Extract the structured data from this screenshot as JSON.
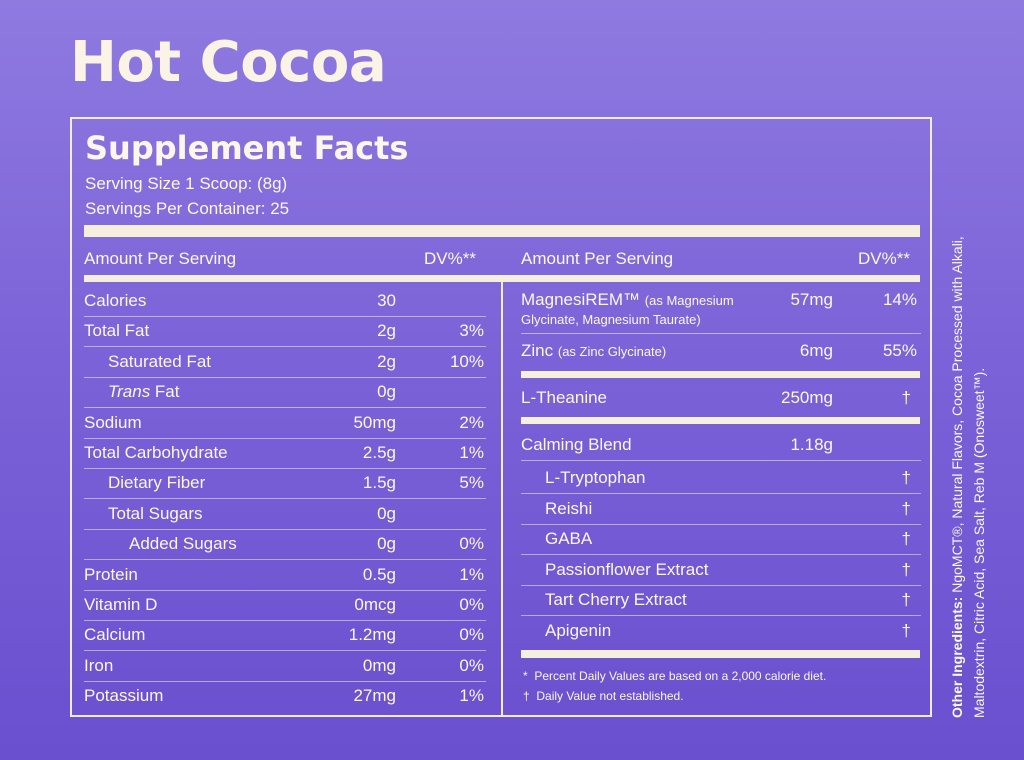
{
  "title": "Hot Cocoa",
  "facts": {
    "heading": "Supplement Facts",
    "serving_size": "Serving Size 1 Scoop: (8g)",
    "servings_per_container": "Servings Per Container: 25",
    "left_header": {
      "amount": "Amount Per Serving",
      "dv": "DV%**"
    },
    "right_header": {
      "amount": "Amount Per Serving",
      "dv": "DV%**"
    },
    "left_rows": [
      {
        "label": "Calories",
        "amount": "30",
        "dv": ""
      },
      {
        "label": "Total Fat",
        "amount": "2g",
        "dv": "3%"
      },
      {
        "label": "Saturated Fat",
        "amount": "2g",
        "dv": "10%"
      },
      {
        "label": "Trans",
        "label_suffix": " Fat",
        "amount": "0g",
        "dv": ""
      },
      {
        "label": "Sodium",
        "amount": "50mg",
        "dv": "2%"
      },
      {
        "label": "Total Carbohydrate",
        "amount": "2.5g",
        "dv": "1%"
      },
      {
        "label": "Dietary Fiber",
        "amount": "1.5g",
        "dv": "5%"
      },
      {
        "label": "Total Sugars",
        "amount": "0g",
        "dv": ""
      },
      {
        "label": "Added Sugars",
        "amount": "0g",
        "dv": "0%"
      },
      {
        "label": "Protein",
        "amount": "0.5g",
        "dv": "1%"
      },
      {
        "label": "Vitamin D",
        "amount": "0mcg",
        "dv": "0%"
      },
      {
        "label": "Calcium",
        "amount": "1.2mg",
        "dv": "0%"
      },
      {
        "label": "Iron",
        "amount": "0mg",
        "dv": "0%"
      },
      {
        "label": "Potassium",
        "amount": "27mg",
        "dv": "1%"
      }
    ],
    "right_rows": {
      "magnesirem": {
        "label": "MagnesiREM™",
        "detail": "(as Magnesium",
        "detail2": "Glycinate, Magnesium Taurate)",
        "amount": "57mg",
        "dv": "14%"
      },
      "zinc": {
        "label": "Zinc",
        "detail": "(as Zinc Glycinate)",
        "amount": "6mg",
        "dv": "55%"
      },
      "theanine": {
        "label": "L-Theanine",
        "amount": "250mg",
        "dv": "†"
      },
      "blend": {
        "label": "Calming Blend",
        "amount": "1.18g"
      },
      "blend_items": [
        {
          "label": "L-Tryptophan",
          "dv": "†"
        },
        {
          "label": "Reishi",
          "dv": "†"
        },
        {
          "label": "GABA",
          "dv": "†"
        },
        {
          "label": "Passionflower Extract",
          "dv": "†"
        },
        {
          "label": "Tart Cherry Extract",
          "dv": "†"
        },
        {
          "label": "Apigenin",
          "dv": "†"
        }
      ]
    },
    "footnotes": [
      {
        "mark": "*",
        "text": "Percent Daily Values are based on a 2,000 calorie diet."
      },
      {
        "mark": "†",
        "text": "Daily Value not established."
      }
    ]
  },
  "other_ingredients": {
    "label": "Other Ingredients:",
    "text": "NgoMCT®, Natural Flavors, Cocoa Processed with Alkali, Maltodextrin, Citric Acid, Sea Salt, Reb M (Onosweet™)."
  },
  "colors": {
    "background": "#7c63d8",
    "ink": "#fdf6ea"
  }
}
